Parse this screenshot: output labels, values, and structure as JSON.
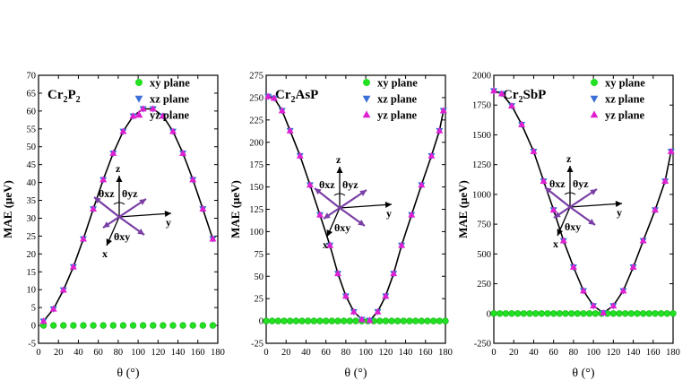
{
  "chart_data": [
    {
      "type": "line",
      "title": "Cr2P2",
      "title_main": "Cr",
      "title_sub1": "2",
      "title_mid": "P",
      "title_sub2": "2",
      "xlabel": "θ (°)",
      "ylabel": "MAE (μeV)",
      "xlim": [
        0,
        180
      ],
      "ylim": [
        -5,
        70
      ],
      "yticks": [
        "-5",
        "0",
        "5",
        "10",
        "15",
        "20",
        "25",
        "30",
        "35",
        "40",
        "45",
        "50",
        "55",
        "60",
        "65",
        "70"
      ],
      "xticks": [
        "0",
        "20",
        "40",
        "60",
        "80",
        "100",
        "120",
        "140",
        "160",
        "180"
      ],
      "inset": {
        "z": "z",
        "y": "y",
        "x": "x",
        "txz": "θxz",
        "tyz": "θyz",
        "txy": "θxy"
      },
      "series": [
        {
          "name": "xy plane",
          "color": "#22e022",
          "marker": "circle",
          "x": [
            5,
            15,
            25,
            35,
            45,
            55,
            65,
            75,
            85,
            95,
            105,
            115,
            125,
            135,
            145,
            155,
            165,
            175
          ],
          "y": [
            0,
            0,
            0,
            0,
            0,
            0,
            0,
            0,
            0,
            0,
            0,
            0,
            0,
            0,
            0,
            0,
            0,
            0
          ]
        },
        {
          "name": "xz plane",
          "color": "#3b6fd6",
          "marker": "triangle-down",
          "x": [
            5,
            15,
            25,
            35,
            45,
            55,
            65,
            75,
            85,
            95,
            105,
            115,
            125,
            135,
            145,
            155,
            165,
            175
          ],
          "y": [
            1.2,
            4.6,
            9.9,
            16.4,
            24.2,
            32.6,
            40.8,
            48.2,
            54.3,
            58.6,
            60.6,
            60.6,
            58.6,
            54.3,
            48.2,
            40.8,
            32.6,
            24.2
          ]
        },
        {
          "name": "yz plane",
          "color": "#e020d0",
          "marker": "triangle-up",
          "x": [
            5,
            15,
            25,
            35,
            45,
            55,
            65,
            75,
            85,
            95,
            105,
            115,
            125,
            135,
            145,
            155,
            165,
            175
          ],
          "y": [
            1.2,
            4.6,
            9.9,
            16.4,
            24.2,
            32.6,
            40.8,
            48.2,
            54.3,
            58.6,
            60.6,
            60.6,
            58.6,
            54.3,
            48.2,
            40.8,
            32.6,
            24.2
          ]
        }
      ]
    },
    {
      "type": "line",
      "title": "Cr2AsP",
      "title_main": "Cr",
      "title_sub1": "2",
      "title_mid": "AsP",
      "title_sub2": "",
      "xlabel": "θ (°)",
      "ylabel": "MAE (μeV)",
      "xlim": [
        0,
        180
      ],
      "ylim": [
        -25,
        275
      ],
      "yticks": [
        "-25",
        "0",
        "25",
        "50",
        "75",
        "100",
        "125",
        "150",
        "175",
        "200",
        "225",
        "250",
        "275"
      ],
      "xticks": [
        "0",
        "20",
        "40",
        "60",
        "80",
        "100",
        "120",
        "140",
        "160",
        "180"
      ],
      "inset": {
        "z": "z",
        "y": "y",
        "x": "x",
        "txz": "θxz",
        "tyz": "θyz",
        "txy": "θxy"
      },
      "series": [
        {
          "name": "xy plane",
          "color": "#22e022",
          "marker": "circle",
          "x": [
            0,
            6,
            12,
            18,
            24,
            30,
            36,
            42,
            48,
            54,
            60,
            66,
            72,
            78,
            84,
            90,
            96,
            102,
            108,
            114,
            120,
            126,
            132,
            138,
            144,
            150,
            156,
            162,
            168,
            174,
            180
          ],
          "y": [
            0,
            0,
            0,
            0,
            0,
            0,
            0,
            0,
            0,
            0,
            0,
            0,
            0,
            0,
            0,
            0,
            0,
            0,
            0,
            0,
            0,
            0,
            0,
            0,
            0,
            0,
            0,
            0,
            0,
            0,
            0
          ]
        },
        {
          "name": "xz plane",
          "color": "#3b6fd6",
          "marker": "triangle-down",
          "x": [
            2,
            8,
            16,
            24,
            34,
            44,
            54,
            64,
            72,
            80,
            88,
            96,
            104,
            112,
            120,
            128,
            136,
            146,
            156,
            166,
            174,
            178
          ],
          "y": [
            251.3,
            249.5,
            235.4,
            213.0,
            184.9,
            152.3,
            118.8,
            84.7,
            53.1,
            27.9,
            10.3,
            1.7,
            0.6,
            10.3,
            27.9,
            53.1,
            84.7,
            118.8,
            152.3,
            184.9,
            213.0,
            235.4
          ]
        },
        {
          "name": "yz plane",
          "color": "#e020d0",
          "marker": "triangle-up",
          "x": [
            2,
            8,
            16,
            24,
            34,
            44,
            54,
            64,
            72,
            80,
            88,
            96,
            104,
            112,
            120,
            128,
            136,
            146,
            156,
            166,
            174,
            178
          ],
          "y": [
            251.3,
            249.5,
            235.4,
            213.0,
            184.9,
            152.3,
            118.8,
            84.7,
            53.1,
            27.9,
            10.3,
            1.7,
            0.6,
            10.3,
            27.9,
            53.1,
            84.7,
            118.8,
            152.3,
            184.9,
            213.0,
            235.4
          ]
        }
      ]
    },
    {
      "type": "line",
      "title": "Cr2SbP",
      "title_main": "Cr",
      "title_sub1": "2",
      "title_mid": "SbP",
      "title_sub2": "",
      "xlabel": "θ (°)",
      "ylabel": "MAE (μeV)",
      "xlim": [
        0,
        180
      ],
      "ylim": [
        -250,
        2000
      ],
      "yticks": [
        "-250",
        "0",
        "250",
        "500",
        "750",
        "1000",
        "1250",
        "1500",
        "1750",
        "2000"
      ],
      "xticks": [
        "0",
        "20",
        "40",
        "60",
        "80",
        "100",
        "120",
        "140",
        "160",
        "180"
      ],
      "inset": {
        "z": "z",
        "y": "y",
        "x": "x",
        "txz": "θxz",
        "tyz": "θyz",
        "txy": "θxy"
      },
      "series": [
        {
          "name": "xy plane",
          "color": "#22e022",
          "marker": "circle",
          "x": [
            0,
            6,
            12,
            18,
            24,
            30,
            36,
            42,
            48,
            54,
            60,
            66,
            72,
            78,
            84,
            90,
            96,
            102,
            108,
            114,
            120,
            126,
            132,
            138,
            144,
            150,
            156,
            162,
            168,
            174,
            180
          ],
          "y": [
            0,
            0,
            0,
            0,
            0,
            0,
            0,
            0,
            0,
            0,
            0,
            0,
            0,
            0,
            0,
            0,
            0,
            0,
            0,
            0,
            0,
            0,
            0,
            0,
            0,
            0,
            0,
            0,
            0,
            0,
            0
          ]
        },
        {
          "name": "xz plane",
          "color": "#3b6fd6",
          "marker": "triangle-down",
          "x": [
            0,
            8,
            18,
            28,
            40,
            50,
            60,
            70,
            80,
            90,
            100,
            110,
            120,
            130,
            140,
            150,
            162,
            172,
            178
          ],
          "y": [
            1870,
            1845,
            1744,
            1587,
            1361,
            1112,
            870,
            611,
            390,
            191,
            65,
            5,
            65,
            191,
            390,
            611,
            870,
            1112,
            1361
          ]
        },
        {
          "name": "yz plane",
          "color": "#e020d0",
          "marker": "triangle-up",
          "x": [
            0,
            8,
            18,
            28,
            40,
            50,
            60,
            70,
            80,
            90,
            100,
            110,
            120,
            130,
            140,
            150,
            162,
            172,
            178
          ],
          "y": [
            1870,
            1845,
            1744,
            1587,
            1361,
            1112,
            870,
            611,
            390,
            191,
            65,
            5,
            65,
            191,
            390,
            611,
            870,
            1112,
            1361
          ]
        }
      ]
    }
  ]
}
